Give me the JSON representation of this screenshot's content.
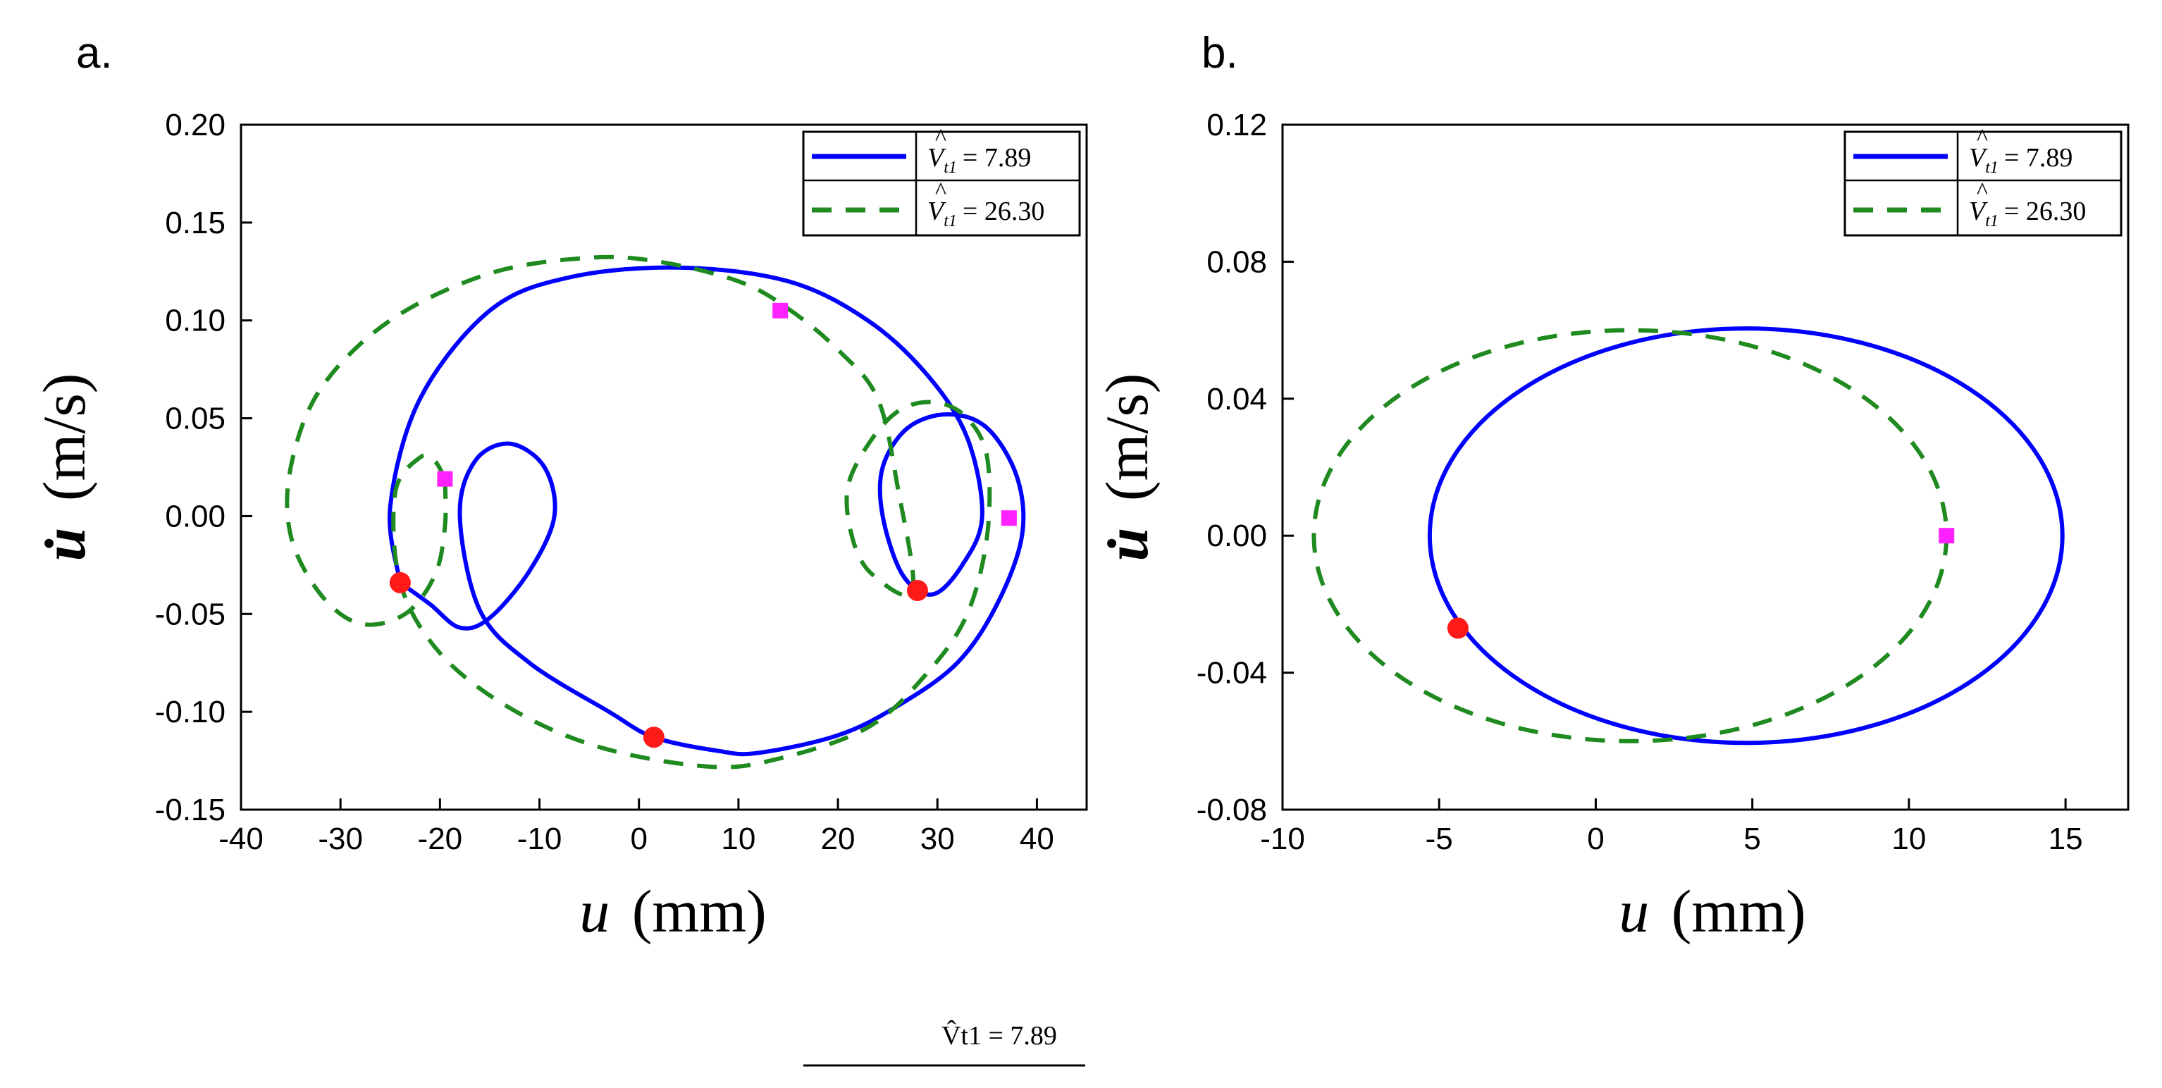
{
  "colors": {
    "series1": "#0000ff",
    "series2": "#1f8a1f",
    "start_marker": "#ff1a1a",
    "end_marker": "#ff22ff",
    "axis": "#000000"
  },
  "legend_text": {
    "series1_v": "V",
    "series1_sub": "t1",
    "series1_val": "= 7.89",
    "series2_v": "V",
    "series2_sub": "t1",
    "series2_val": "= 26.30",
    "series1_footnote": "V̂t1 = 7.89"
  },
  "chart_data": [
    {
      "panel_label": "a.",
      "type": "line",
      "xlabel_var": "u",
      "xlabel_unit": "(mm)",
      "ylabel_var": "u̇",
      "ylabel_unit": "(m/s)",
      "xlim": [
        -40,
        45
      ],
      "ylim": [
        -0.15,
        0.2
      ],
      "xticks": [
        -40,
        -30,
        -20,
        -10,
        0,
        10,
        20,
        30,
        40
      ],
      "xtick_labels": [
        "-40",
        "-30",
        "-20",
        "-10",
        "0",
        "10",
        "20",
        "30",
        "40"
      ],
      "yticks": [
        -0.15,
        -0.1,
        -0.05,
        0.0,
        0.05,
        0.1,
        0.15,
        0.2
      ],
      "ytick_labels": [
        "-0.15",
        "-0.10",
        "-0.05",
        "0.00",
        "0.05",
        "0.10",
        "0.15",
        "0.20"
      ],
      "legend_position": "top-right",
      "series": [
        {
          "name": "V̂t1 = 7.89",
          "style": "solid",
          "points": [
            [
              -24,
              -0.034
            ],
            [
              -21,
              -0.045
            ],
            [
              -18,
              -0.057
            ],
            [
              -15,
              -0.052
            ],
            [
              -11,
              -0.028
            ],
            [
              -8.5,
              0.0
            ],
            [
              -9.5,
              0.025
            ],
            [
              -13,
              0.037
            ],
            [
              -16.5,
              0.028
            ],
            [
              -18,
              0.0
            ],
            [
              -16,
              -0.048
            ],
            [
              -11,
              -0.075
            ],
            [
              -3,
              -0.1
            ],
            [
              1.5,
              -0.113
            ],
            [
              8,
              -0.12
            ],
            [
              12,
              -0.121
            ],
            [
              20,
              -0.112
            ],
            [
              26,
              -0.097
            ],
            [
              32,
              -0.075
            ],
            [
              36,
              -0.045
            ],
            [
              38.5,
              -0.01
            ],
            [
              38,
              0.02
            ],
            [
              35,
              0.045
            ],
            [
              31,
              0.052
            ],
            [
              27,
              0.045
            ],
            [
              24.5,
              0.025
            ],
            [
              24.5,
              0.0
            ],
            [
              26.5,
              -0.03
            ],
            [
              29.5,
              -0.04
            ],
            [
              32.5,
              -0.025
            ],
            [
              34.5,
              0.0
            ],
            [
              33,
              0.04
            ],
            [
              29,
              0.072
            ],
            [
              23,
              0.1
            ],
            [
              15,
              0.12
            ],
            [
              4,
              0.127
            ],
            [
              -7,
              0.122
            ],
            [
              -15,
              0.105
            ],
            [
              -22,
              0.06
            ],
            [
              -25,
              0.005
            ],
            [
              -24,
              -0.034
            ]
          ]
        },
        {
          "name": "V̂t1 = 26.30",
          "style": "dashed",
          "points": [
            [
              -19.5,
              0.019
            ],
            [
              -20.5,
              0.028
            ],
            [
              -22,
              0.03
            ],
            [
              -24.5,
              0.012
            ],
            [
              -24,
              -0.034
            ],
            [
              -20,
              -0.07
            ],
            [
              -13,
              -0.098
            ],
            [
              -4,
              -0.118
            ],
            [
              7,
              -0.128
            ],
            [
              14,
              -0.124
            ],
            [
              23,
              -0.108
            ],
            [
              29,
              -0.08
            ],
            [
              33,
              -0.05
            ],
            [
              35,
              -0.01
            ],
            [
              35,
              0.03
            ],
            [
              33,
              0.05
            ],
            [
              30,
              0.058
            ],
            [
              26.5,
              0.055
            ],
            [
              23.5,
              0.04
            ],
            [
              21,
              0.015
            ],
            [
              21.5,
              -0.012
            ],
            [
              23.5,
              -0.03
            ],
            [
              27.5,
              -0.038
            ],
            [
              26,
              0.015
            ],
            [
              24,
              0.06
            ],
            [
              20,
              0.085
            ],
            [
              15,
              0.106
            ],
            [
              10,
              0.12
            ],
            [
              2,
              0.13
            ],
            [
              -5,
              0.132
            ],
            [
              -15,
              0.124
            ],
            [
              -25,
              0.1
            ],
            [
              -32,
              0.065
            ],
            [
              -35,
              0.025
            ],
            [
              -35,
              -0.01
            ],
            [
              -32,
              -0.04
            ],
            [
              -28,
              -0.055
            ],
            [
              -23.5,
              -0.05
            ],
            [
              -20.5,
              -0.03
            ],
            [
              -19.5,
              -0.005
            ],
            [
              -19.5,
              0.019
            ]
          ]
        }
      ],
      "start_markers": [
        [
          -24,
          -0.034
        ],
        [
          1.5,
          -0.113
        ],
        [
          28,
          -0.038
        ]
      ],
      "end_markers": [
        [
          14.2,
          0.105
        ],
        [
          -19.5,
          0.019
        ],
        [
          37.2,
          -0.001
        ]
      ]
    },
    {
      "panel_label": "b.",
      "type": "line",
      "xlabel_var": "u",
      "xlabel_unit": "(mm)",
      "ylabel_var": "u̇",
      "ylabel_unit": "(m/s)",
      "xlim": [
        -10,
        17
      ],
      "ylim": [
        -0.08,
        0.12
      ],
      "xticks": [
        -10,
        -5,
        0,
        5,
        10,
        15
      ],
      "xtick_labels": [
        "-10",
        "-5",
        "0",
        "5",
        "10",
        "15"
      ],
      "yticks": [
        -0.08,
        -0.04,
        0.0,
        0.04,
        0.08,
        0.12
      ],
      "ytick_labels": [
        "-0.08",
        "-0.04",
        "0.00",
        "0.04",
        "0.08",
        "0.12"
      ],
      "legend_position": "top-right",
      "series": [
        {
          "name": "V̂t1 = 7.89",
          "style": "solid",
          "ellipse": {
            "cx": 4.8,
            "cy": 0.0,
            "rx": 10.1,
            "ry": 0.0605
          }
        },
        {
          "name": "V̂t1 = 26.30",
          "style": "dashed",
          "ellipse": {
            "cx": 1.1,
            "cy": 0.0,
            "rx": 10.1,
            "ry": 0.06
          }
        }
      ],
      "start_markers": [
        [
          -4.4,
          -0.027
        ]
      ],
      "end_markers": [
        [
          11.2,
          0.0
        ]
      ]
    }
  ]
}
